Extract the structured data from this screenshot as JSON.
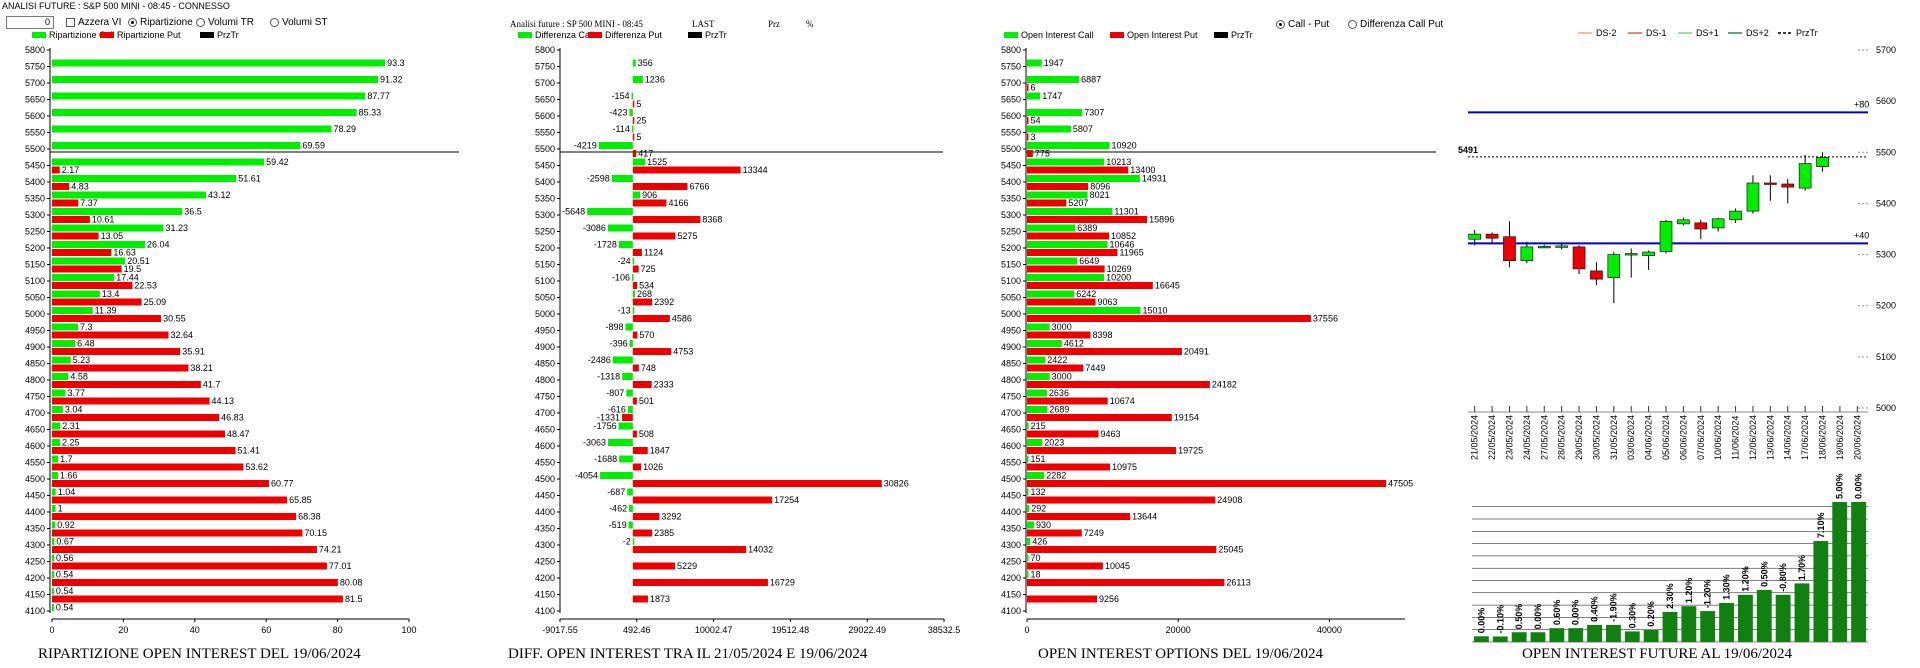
{
  "status": "ANALISI FUTURE : S&P 500 MINI - 08:45 - CONNESSO",
  "controls": {
    "number": "0",
    "checkbox": "Azzera VI",
    "radios": [
      "Ripartizione",
      "Volumi TR",
      "Volumi ST"
    ],
    "radios_selected": 0,
    "callput_radios": [
      "Call - Put",
      "Differenza Call Put"
    ],
    "callput_selected": 0
  },
  "header2": {
    "left": "Analisi future : SP 500 MINI - 08:45",
    "last": "LAST",
    "prz": "Prz",
    "pct": "%"
  },
  "strikes": [
    5800,
    5750,
    5700,
    5650,
    5600,
    5550,
    5500,
    5450,
    5400,
    5350,
    5300,
    5250,
    5200,
    5150,
    5100,
    5050,
    5000,
    4950,
    4900,
    4850,
    4800,
    4750,
    4700,
    4650,
    4600,
    4550,
    4500,
    4450,
    4400,
    4350,
    4300,
    4250,
    4200,
    4150,
    4100
  ],
  "chart_data": [
    {
      "type": "bar",
      "title": "RIPARTIZIONE OPEN INTEREST DEL 19/06/2024",
      "legend": [
        "Ripartizione Call",
        "Ripartizione Put",
        "PrzTr"
      ],
      "xlim": [
        0,
        100
      ],
      "xticks": [
        0,
        20,
        40,
        60,
        80,
        100
      ],
      "line_at": 5500,
      "series": [
        {
          "name": "Ripartizione Call",
          "color": "#00ee00",
          "values": [
            null,
            93.3,
            91.32,
            87.77,
            85.33,
            78.29,
            69.59,
            59.42,
            51.61,
            43.12,
            36.5,
            31.23,
            26.04,
            20.51,
            17.44,
            13.4,
            11.39,
            7.3,
            6.48,
            5.23,
            4.58,
            3.77,
            3.04,
            2.31,
            2.25,
            1.7,
            1.66,
            1.04,
            1,
            0.92,
            0.67,
            0.56,
            0.54,
            0.54,
            0.54
          ]
        },
        {
          "name": "Ripartizione Put",
          "color": "#ee0000",
          "values": [
            null,
            null,
            null,
            null,
            null,
            null,
            null,
            2.17,
            4.83,
            7.37,
            10.61,
            13.05,
            16.63,
            19.5,
            22.53,
            25.09,
            30.55,
            32.64,
            35.91,
            38.21,
            41.7,
            44.13,
            46.83,
            48.47,
            51.41,
            53.62,
            60.77,
            65.85,
            68.38,
            70.15,
            74.21,
            77.01,
            80.08,
            81.5,
            null
          ]
        }
      ]
    },
    {
      "type": "bar",
      "title": "DIFF. OPEN INTEREST TRA IL 21/05/2024 E 19/06/2024",
      "legend": [
        "Differenza Call",
        "Differenza Put",
        "PrzTr"
      ],
      "xlim": [
        -9017.55,
        38532.5
      ],
      "xticks": [
        "-9017.55",
        "492.46",
        "10002.47",
        "19512.48",
        "29022.49",
        "38532.5"
      ],
      "line_at": 5500,
      "series": [
        {
          "name": "Differenza Call",
          "color": "#00ee00",
          "values": [
            null,
            356,
            1236,
            -154,
            -423,
            -114,
            -4219,
            1525,
            -2598,
            906,
            -5648,
            -3086,
            -1728,
            -24,
            -106,
            268,
            -13,
            -898,
            -396,
            -2486,
            -1318,
            -807,
            -616,
            -1756,
            -3063,
            -1688,
            -4054,
            -687,
            -462,
            -519,
            -2,
            null,
            null,
            null,
            null
          ]
        },
        {
          "name": "Differenza Put",
          "color": "#ee0000",
          "values": [
            null,
            null,
            null,
            5,
            25,
            5,
            417,
            13344,
            6766,
            4166,
            8368,
            5275,
            1124,
            725,
            534,
            2392,
            4586,
            570,
            4753,
            748,
            2333,
            501,
            -1331,
            508,
            1847,
            1026,
            30826,
            17254,
            3292,
            2385,
            14032,
            5229,
            16729,
            1873,
            null
          ]
        }
      ]
    },
    {
      "type": "bar",
      "title": "OPEN INTEREST OPTIONS DEL 19/06/2024",
      "legend": [
        "Open Interest Call",
        "Open Interest Put",
        "PrzTr"
      ],
      "xlim": [
        0,
        50000
      ],
      "xticks": [
        0,
        20000,
        40000
      ],
      "line_at": 5500,
      "series": [
        {
          "name": "Open Interest Call",
          "color": "#00ee00",
          "values": [
            null,
            1947,
            6887,
            1747,
            7307,
            5807,
            10920,
            10213,
            14931,
            8021,
            11301,
            6389,
            10646,
            6649,
            10200,
            6242,
            15010,
            3000,
            4612,
            2422,
            3000,
            2636,
            2689,
            215,
            2023,
            151,
            2282,
            132,
            292,
            930,
            426,
            70,
            18,
            null,
            null
          ]
        },
        {
          "name": "Open Interest Put",
          "color": "#ee0000",
          "values": [
            null,
            null,
            6,
            null,
            54,
            3,
            775,
            13400,
            8096,
            5207,
            15896,
            10852,
            11965,
            10269,
            16645,
            9063,
            37556,
            8398,
            20491,
            7449,
            24182,
            10674,
            19154,
            9463,
            19725,
            10975,
            47505,
            24908,
            13644,
            7249,
            25045,
            10045,
            26113,
            9256,
            null
          ]
        }
      ]
    },
    {
      "type": "candlestick",
      "legend": [
        "DS-2",
        "DS-1",
        "DS+1",
        "DS+2",
        "PrzTr"
      ],
      "legend_colors": [
        "#f4a582",
        "#d6604d",
        "#7fd87f",
        "#1a9641",
        "#000000"
      ],
      "ylim": [
        5000,
        5700
      ],
      "yticks": [
        5000,
        5100,
        5200,
        5300,
        5400,
        5500,
        5600,
        5700
      ],
      "lines": [
        {
          "label": "+80",
          "value": 5578
        },
        {
          "label": "+40",
          "value": 5322
        }
      ],
      "price_label": "5491",
      "price_line": 5491,
      "dates": [
        "21/05/2024",
        "22/05/2024",
        "23/05/2024",
        "24/05/2024",
        "27/05/2024",
        "28/05/2024",
        "29/05/2024",
        "30/05/2024",
        "31/05/2024",
        "03/06/2024",
        "04/06/2024",
        "05/06/2024",
        "06/06/2024",
        "07/06/2024",
        "10/06/2024",
        "11/06/2024",
        "12/06/2024",
        "13/06/2024",
        "14/06/2024",
        "17/06/2024",
        "18/06/2024",
        "19/06/2024",
        "20/06/2024"
      ],
      "ohlc": [
        [
          5330,
          5348,
          5318,
          5340
        ],
        [
          5340,
          5343,
          5322,
          5332
        ],
        [
          5335,
          5365,
          5275,
          5288
        ],
        [
          5288,
          5325,
          5283,
          5315
        ],
        [
          5316,
          5319,
          5314,
          5316
        ],
        [
          5316,
          5322,
          5310,
          5317
        ],
        [
          5315,
          5318,
          5262,
          5272
        ],
        [
          5268,
          5285,
          5240,
          5252
        ],
        [
          5255,
          5305,
          5205,
          5300
        ],
        [
          5300,
          5312,
          5255,
          5302
        ],
        [
          5298,
          5308,
          5270,
          5305
        ],
        [
          5306,
          5368,
          5302,
          5365
        ],
        [
          5360,
          5372,
          5357,
          5368
        ],
        [
          5362,
          5368,
          5330,
          5350
        ],
        [
          5352,
          5372,
          5345,
          5370
        ],
        [
          5368,
          5390,
          5362,
          5385
        ],
        [
          5385,
          5455,
          5380,
          5440
        ],
        [
          5440,
          5455,
          5405,
          5438
        ],
        [
          5438,
          5448,
          5400,
          5432
        ],
        [
          5430,
          5495,
          5425,
          5478
        ],
        [
          5472,
          5500,
          5462,
          5490
        ],
        [
          null,
          null,
          null,
          null
        ],
        [
          null,
          null,
          null,
          null
        ]
      ]
    },
    {
      "type": "bar",
      "title": "OPEN INTEREST FUTURE AL 19/06/2024",
      "labels": [
        "0.00%",
        "-0.10%",
        "0.50%",
        "0.00%",
        "0.60%",
        "0.00%",
        "0.40%",
        "-1.90%",
        "0.30%",
        "0.20%",
        "2.30%",
        "1.20%",
        "-1.20%",
        "1.30%",
        "1.20%",
        "0.50%",
        "-0.80%",
        "1.70%",
        "7.10%",
        "5.00%",
        "0.00%"
      ],
      "values": [
        3.5,
        3.4,
        6,
        6,
        8.5,
        8.5,
        10.5,
        10.5,
        6.5,
        7.5,
        18.5,
        22,
        19,
        24,
        29,
        32,
        29,
        36,
        62,
        86,
        86
      ]
    }
  ]
}
